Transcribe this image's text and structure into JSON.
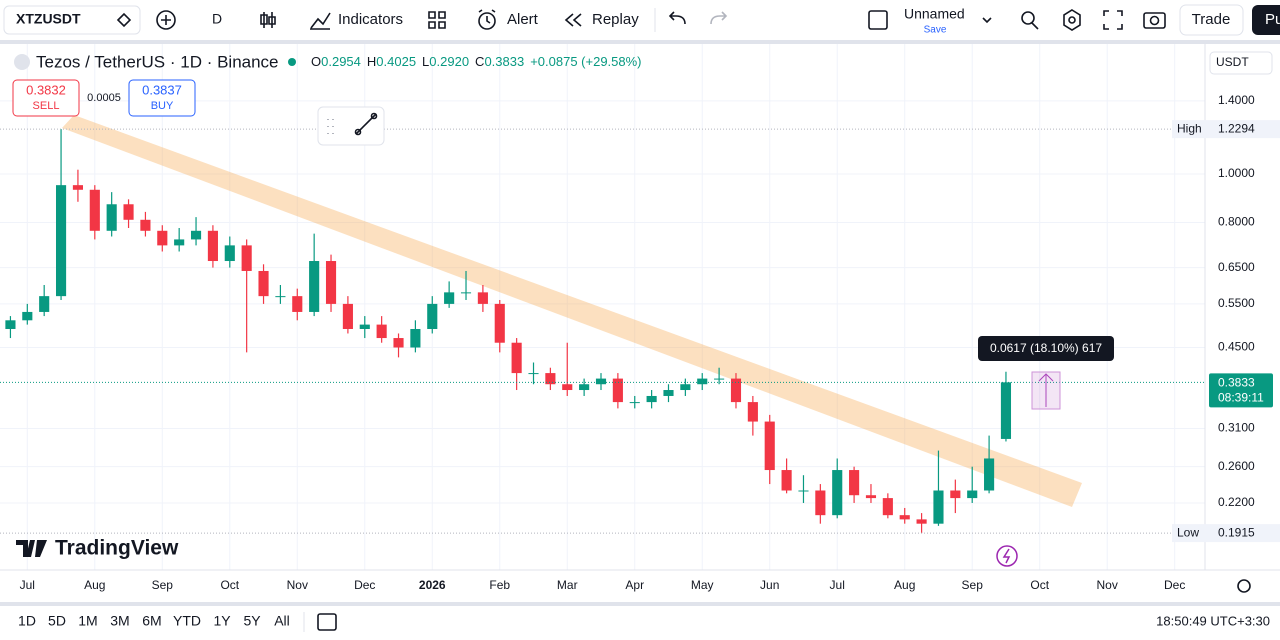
{
  "toolbar": {
    "symbol": "XTZUSDT",
    "interval": "D",
    "indicators": "Indicators",
    "alert": "Alert",
    "replay": "Replay",
    "layout_name": "Unnamed",
    "save": "Save",
    "trade": "Trade",
    "publish": "Pu"
  },
  "legend": {
    "title": "Tezos / TetherUS · 1D · Binance",
    "ohlc": [
      {
        "key": "O",
        "value": "0.2954"
      },
      {
        "key": "H",
        "value": "0.4025"
      },
      {
        "key": "L",
        "value": "0.2920"
      },
      {
        "key": "C",
        "value": "0.3833"
      }
    ],
    "change": "+0.0875 (+29.58%)"
  },
  "order": {
    "sell_price": "0.3832",
    "sell": "SELL",
    "spread": "0.0005",
    "buy_price": "0.3837",
    "buy": "BUY"
  },
  "chart_data": {
    "type": "candlestick",
    "currency": "USDT",
    "log_scale": true,
    "grid": true,
    "up_color": "#089981",
    "down_color": "#f23645",
    "categories": [
      null,
      "Jul",
      null,
      null,
      null,
      "Aug",
      null,
      null,
      null,
      "Sep",
      null,
      null,
      null,
      "Oct",
      null,
      null,
      null,
      "Nov",
      null,
      null,
      null,
      "Dec",
      null,
      null,
      null,
      "2026",
      null,
      null,
      null,
      "Feb",
      null,
      null,
      null,
      "Mar",
      null,
      null,
      null,
      "Apr",
      null,
      null,
      null,
      "May",
      null,
      null,
      null,
      "Jun",
      null,
      null,
      null,
      "Jul",
      null,
      null,
      null,
      "Aug",
      null,
      null,
      null,
      "Sep",
      null,
      null,
      null,
      "Oct",
      null,
      null,
      null,
      "Nov",
      null,
      null,
      null,
      "Dec",
      null
    ],
    "open": [
      0.49,
      0.51,
      0.53,
      0.57,
      0.95,
      0.93,
      0.77,
      0.87,
      0.81,
      0.77,
      0.72,
      0.74,
      0.77,
      0.67,
      0.72,
      0.64,
      0.57,
      0.57,
      0.53,
      0.67,
      0.55,
      0.49,
      0.5,
      0.47,
      0.45,
      0.49,
      0.55,
      0.58,
      0.58,
      0.55,
      0.46,
      0.4,
      0.4,
      0.38,
      0.37,
      0.38,
      0.39,
      0.35,
      0.35,
      0.36,
      0.37,
      0.38,
      0.39,
      0.39,
      0.35,
      0.32,
      0.256,
      0.233,
      0.233,
      0.208,
      0.256,
      0.228,
      0.225,
      0.208,
      0.204,
      0.2,
      0.233,
      0.225,
      0.233,
      0.2954,
      null,
      null,
      null,
      null,
      null,
      null,
      null,
      null,
      null,
      null,
      null
    ],
    "high": [
      0.52,
      0.55,
      0.6,
      1.2294,
      1.02,
      0.95,
      0.92,
      0.89,
      0.84,
      0.79,
      0.78,
      0.82,
      0.79,
      0.75,
      0.74,
      0.66,
      0.6,
      0.59,
      0.76,
      0.69,
      0.57,
      0.52,
      0.52,
      0.48,
      0.51,
      0.57,
      0.61,
      0.64,
      0.6,
      0.56,
      0.47,
      0.42,
      0.41,
      0.46,
      0.39,
      0.4,
      0.4,
      0.36,
      0.37,
      0.38,
      0.39,
      0.4,
      0.41,
      0.4,
      0.36,
      0.33,
      0.27,
      0.25,
      0.24,
      0.27,
      0.26,
      0.24,
      0.23,
      0.215,
      0.21,
      0.28,
      0.245,
      0.26,
      0.3,
      0.4025,
      null,
      null,
      null,
      null,
      null,
      null,
      null,
      null,
      null,
      null,
      null
    ],
    "low": [
      0.47,
      0.5,
      0.52,
      0.56,
      0.88,
      0.74,
      0.75,
      0.78,
      0.75,
      0.7,
      0.7,
      0.72,
      0.65,
      0.65,
      0.44,
      0.55,
      0.55,
      0.51,
      0.52,
      0.53,
      0.48,
      0.47,
      0.46,
      0.43,
      0.44,
      0.48,
      0.54,
      0.56,
      0.53,
      0.44,
      0.37,
      0.38,
      0.37,
      0.36,
      0.36,
      0.37,
      0.34,
      0.34,
      0.34,
      0.35,
      0.36,
      0.37,
      0.38,
      0.34,
      0.3,
      0.24,
      0.23,
      0.22,
      0.2,
      0.205,
      0.22,
      0.22,
      0.205,
      0.2,
      0.1915,
      0.198,
      0.21,
      0.22,
      0.23,
      0.292,
      null,
      null,
      null,
      null,
      null,
      null,
      null,
      null,
      null,
      null,
      null
    ],
    "close": [
      0.51,
      0.53,
      0.57,
      0.95,
      0.93,
      0.77,
      0.87,
      0.81,
      0.77,
      0.72,
      0.74,
      0.77,
      0.67,
      0.72,
      0.64,
      0.57,
      0.57,
      0.53,
      0.67,
      0.55,
      0.49,
      0.5,
      0.47,
      0.45,
      0.49,
      0.55,
      0.58,
      0.58,
      0.55,
      0.46,
      0.4,
      0.4,
      0.38,
      0.37,
      0.38,
      0.39,
      0.35,
      0.35,
      0.36,
      0.37,
      0.38,
      0.39,
      0.39,
      0.35,
      0.32,
      0.256,
      0.233,
      0.233,
      0.208,
      0.256,
      0.228,
      0.225,
      0.208,
      0.204,
      0.2,
      0.233,
      0.225,
      0.233,
      0.27,
      0.3833,
      null,
      null,
      null,
      null,
      null,
      null,
      null,
      null,
      null,
      null,
      null
    ],
    "ylim": [
      0.1616,
      1.786
    ],
    "yticks": [
      {
        "value": 1.4,
        "label": "1.4000"
      },
      {
        "value": 1.0,
        "label": "1.0000"
      },
      {
        "value": 0.8,
        "label": "0.8000"
      },
      {
        "value": 0.65,
        "label": "0.6500"
      },
      {
        "value": 0.55,
        "label": "0.5500"
      },
      {
        "value": 0.45,
        "label": "0.4500"
      },
      {
        "value": 0.31,
        "label": "0.3100"
      },
      {
        "value": 0.26,
        "label": "0.2600"
      },
      {
        "value": 0.22,
        "label": "0.2200"
      }
    ],
    "high_label": "High",
    "high_price": 1.2294,
    "low_label": "Low",
    "low_price": 0.1915,
    "last_price": 0.3833,
    "countdown": "08:39:11",
    "measure": "0.0617 (18.10%) 617",
    "watermark": "TradingView"
  },
  "ranges": [
    "1D",
    "5D",
    "1M",
    "3M",
    "6M",
    "YTD",
    "1Y",
    "5Y",
    "All"
  ],
  "clock": "18:50:49 UTC+3:30"
}
